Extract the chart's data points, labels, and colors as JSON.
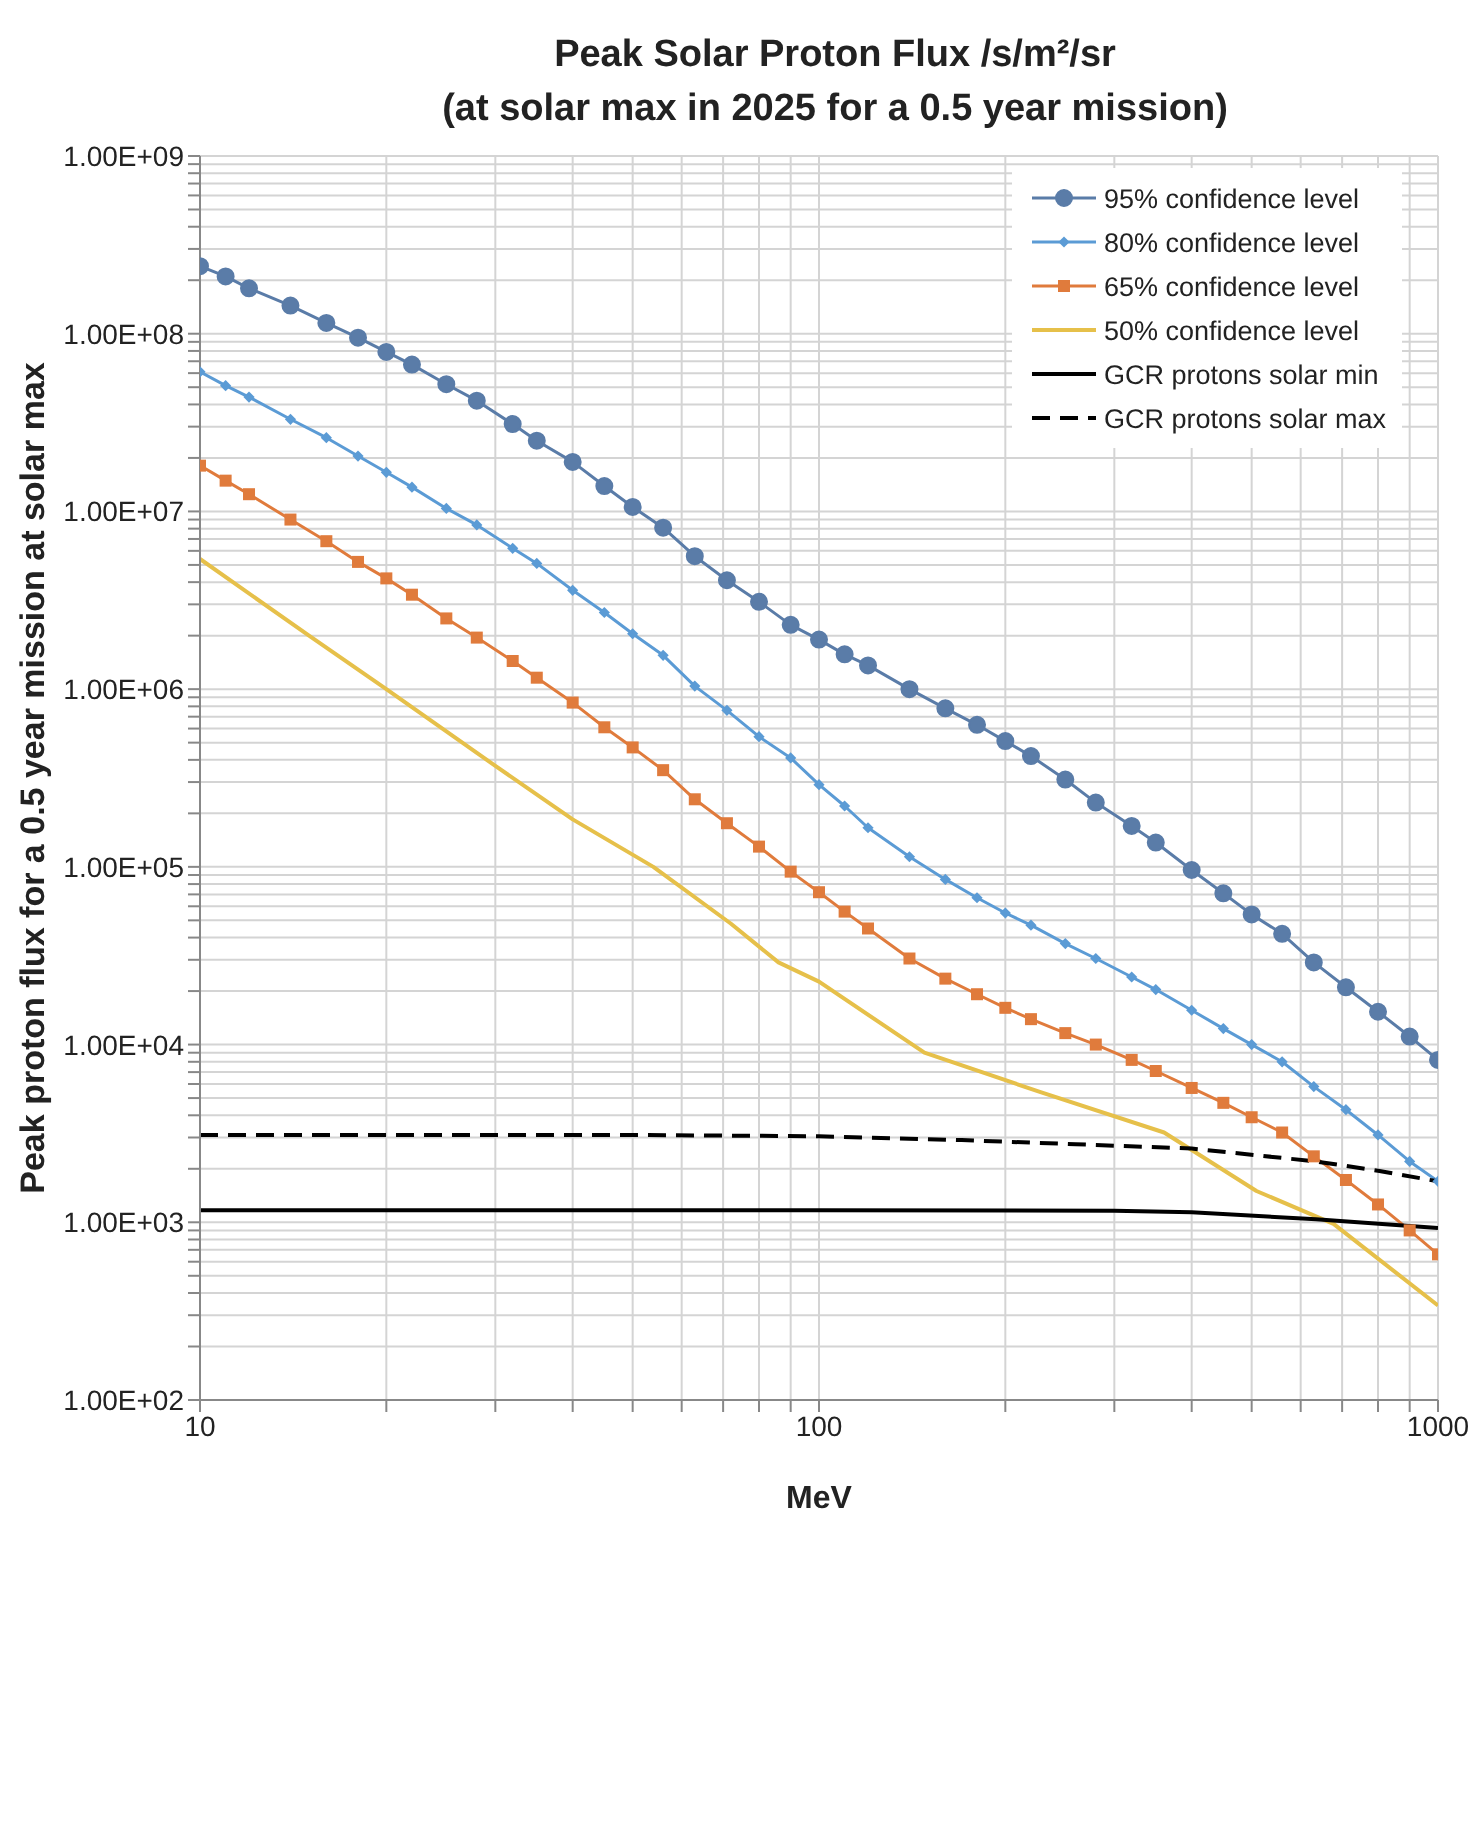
{
  "chart_data": {
    "type": "line",
    "title": "Peak Solar Proton Flux /s/m²/sr",
    "subtitle": "(at solar max in 2025 for a 0.5 year mission)",
    "xlabel": "MeV",
    "ylabel": "Peak proton flux for a 0.5 year mission at solar max",
    "log": "xy",
    "grid": true,
    "legend": "top right",
    "xlim": [
      10,
      1000
    ],
    "ylim": [
      100,
      1000000000
    ],
    "xticks": [
      10,
      {
        "value": 20,
        "label": null
      },
      {
        "value": 30,
        "label": null
      },
      {
        "value": 40,
        "label": null
      },
      {
        "value": 50,
        "label": null
      },
      {
        "value": 60,
        "label": null
      },
      {
        "value": 70,
        "label": null
      },
      {
        "value": 80,
        "label": null
      },
      {
        "value": 90,
        "label": null
      },
      100,
      {
        "value": 200,
        "label": null
      },
      {
        "value": 300,
        "label": null
      },
      {
        "value": 400,
        "label": null
      },
      {
        "value": 500,
        "label": null
      },
      {
        "value": 600,
        "label": null
      },
      {
        "value": 700,
        "label": null
      },
      {
        "value": 800,
        "label": null
      },
      {
        "value": 900,
        "label": null
      },
      1000
    ],
    "yticks": [
      {
        "value": 100,
        "label": "1.00E+02"
      },
      {
        "value": 200,
        "label": null
      },
      {
        "value": 300,
        "label": null
      },
      {
        "value": 400,
        "label": null
      },
      {
        "value": 500,
        "label": null
      },
      {
        "value": 600,
        "label": null
      },
      {
        "value": 700,
        "label": null
      },
      {
        "value": 800,
        "label": null
      },
      {
        "value": 900,
        "label": null
      },
      {
        "value": 1000,
        "label": "1.00E+03"
      },
      {
        "value": 2000,
        "label": null
      },
      {
        "value": 3000,
        "label": null
      },
      {
        "value": 4000,
        "label": null
      },
      {
        "value": 5000,
        "label": null
      },
      {
        "value": 6000,
        "label": null
      },
      {
        "value": 7000,
        "label": null
      },
      {
        "value": 8000,
        "label": null
      },
      {
        "value": 9000,
        "label": null
      },
      {
        "value": 10000,
        "label": "1.00E+04"
      },
      {
        "value": 20000,
        "label": null
      },
      {
        "value": 30000,
        "label": null
      },
      {
        "value": 40000,
        "label": null
      },
      {
        "value": 50000,
        "label": null
      },
      {
        "value": 60000,
        "label": null
      },
      {
        "value": 70000,
        "label": null
      },
      {
        "value": 80000,
        "label": null
      },
      {
        "value": 90000,
        "label": null
      },
      {
        "value": 100000,
        "label": "1.00E+05"
      },
      {
        "value": 200000,
        "label": null
      },
      {
        "value": 300000,
        "label": null
      },
      {
        "value": 400000,
        "label": null
      },
      {
        "value": 500000,
        "label": null
      },
      {
        "value": 600000,
        "label": null
      },
      {
        "value": 700000,
        "label": null
      },
      {
        "value": 800000,
        "label": null
      },
      {
        "value": 900000,
        "label": null
      },
      {
        "value": 1000000,
        "label": "1.00E+06"
      },
      {
        "value": 2000000,
        "label": null
      },
      {
        "value": 3000000,
        "label": null
      },
      {
        "value": 4000000,
        "label": null
      },
      {
        "value": 5000000,
        "label": null
      },
      {
        "value": 6000000,
        "label": null
      },
      {
        "value": 7000000,
        "label": null
      },
      {
        "value": 8000000,
        "label": null
      },
      {
        "value": 9000000,
        "label": null
      },
      {
        "value": 10000000,
        "label": "1.00E+07"
      },
      {
        "value": 20000000,
        "label": null
      },
      {
        "value": 30000000,
        "label": null
      },
      {
        "value": 40000000,
        "label": null
      },
      {
        "value": 50000000,
        "label": null
      },
      {
        "value": 60000000,
        "label": null
      },
      {
        "value": 70000000,
        "label": null
      },
      {
        "value": 80000000,
        "label": null
      },
      {
        "value": 90000000,
        "label": null
      },
      {
        "value": 100000000,
        "label": "1.00E+08"
      },
      {
        "value": 200000000,
        "label": null
      },
      {
        "value": 300000000,
        "label": null
      },
      {
        "value": 400000000,
        "label": null
      },
      {
        "value": 500000000,
        "label": null
      },
      {
        "value": 600000000,
        "label": null
      },
      {
        "value": 700000000,
        "label": null
      },
      {
        "value": 800000000,
        "label": null
      },
      {
        "value": 900000000,
        "label": null
      },
      {
        "value": 1000000000,
        "label": "1.00E+09"
      }
    ],
    "x": [
      10,
      11,
      12,
      14,
      16,
      18,
      20,
      22,
      25,
      28,
      32,
      35,
      40,
      45,
      50,
      56,
      63,
      71,
      80,
      90,
      100,
      110,
      120,
      140,
      160,
      180,
      200,
      220,
      250,
      280,
      320,
      350,
      400,
      450,
      500,
      560,
      630,
      710,
      800,
      900,
      1000
    ],
    "series": [
      {
        "name": "95% confidence level",
        "color": "#5a7ca8",
        "marker": "circle",
        "values": [
          240000000.0,
          210000000.0,
          180000000.0,
          144000000.0,
          115000000.0,
          95000000.0,
          79000000.0,
          67000000.0,
          52000000.0,
          42000000.0,
          31000000.0,
          25000000.0,
          19000000.0,
          13900000.0,
          10600000.0,
          8100000.0,
          5600000.0,
          4100000.0,
          3100000.0,
          2300000.0,
          1900000.0,
          1570000.0,
          1360000.0,
          1000000.0,
          780000.0,
          630000.0,
          510000.0,
          420000.0,
          310000.0,
          230000.0,
          170000.0,
          137000.0,
          96000.0,
          71000.0,
          54000.0,
          42000.0,
          29000.0,
          21000.0,
          15300.0,
          11100.0,
          8200.0
        ]
      },
      {
        "name": "80% confidence level",
        "color": "#5b9bd5",
        "marker": "diamond",
        "values": [
          61000000.0,
          51000000.0,
          44000000.0,
          33000000.0,
          26000000.0,
          20500000.0,
          16600000.0,
          13700000.0,
          10400000.0,
          8400000.0,
          6200000.0,
          5100000.0,
          3600000.0,
          2700000.0,
          2050000.0,
          1550000.0,
          1040000.0,
          760000.0,
          540000.0,
          410000.0,
          290000.0,
          220000.0,
          166000.0,
          114000.0,
          85000.0,
          67000.0,
          55000.0,
          47000.0,
          37000.0,
          30500.0,
          24000.0,
          20400.0,
          15600.0,
          12300.0,
          10000.0,
          8000.0,
          5800.0,
          4300.0,
          3100.0,
          2200.0,
          1700.0
        ]
      },
      {
        "name": "65% confidence level",
        "color": "#e07b3c",
        "marker": "square",
        "values": [
          18100000.0,
          14900000.0,
          12500000.0,
          9000000.0,
          6800000.0,
          5200000.0,
          4200000.0,
          3400000.0,
          2500000.0,
          1950000.0,
          1440000.0,
          1160000.0,
          840000.0,
          610000.0,
          470000.0,
          350000.0,
          240000.0,
          176000.0,
          130000.0,
          94000.0,
          72000.0,
          56000.0,
          45000.0,
          30500.0,
          23500.0,
          19200.0,
          16100.0,
          13900.0,
          11600.0,
          10000.0,
          8200.0,
          7100.0,
          5700.0,
          4700.0,
          3900.0,
          3200.0,
          2350.0,
          1730.0,
          1260.0,
          900.0,
          660.0
        ]
      },
      {
        "name": "50% confidence level",
        "color": "#e6c04a",
        "x": [
          10,
          15,
          20,
          30,
          40,
          54,
          72,
          86,
          100,
          148,
          228,
          361,
          509,
          678,
          1000
        ],
        "values": [
          5400000.0,
          2000000.0,
          1000000.0,
          370000.0,
          185000.0,
          100000.0,
          48000.0,
          29000.0,
          22600.0,
          9000.0,
          5400.0,
          3200.0,
          1500.0,
          980.0,
          340.0
        ]
      },
      {
        "name": "GCR protons solar min",
        "color": "#000000",
        "x": [
          10,
          100,
          300,
          400,
          635,
          1000
        ],
        "values": [
          1170.0,
          1170.0,
          1160.0,
          1140.0,
          1040.0,
          930.0
        ]
      },
      {
        "name": "GCR protons solar max",
        "color": "#000000",
        "line_style": "dashed",
        "x": [
          10,
          50,
          100,
          170,
          260,
          400,
          635,
          800,
          1000
        ],
        "values": [
          3100.0,
          3100.0,
          3050.0,
          2900.0,
          2750.0,
          2600.0,
          2200.0,
          1950.0,
          1700.0
        ]
      }
    ]
  }
}
